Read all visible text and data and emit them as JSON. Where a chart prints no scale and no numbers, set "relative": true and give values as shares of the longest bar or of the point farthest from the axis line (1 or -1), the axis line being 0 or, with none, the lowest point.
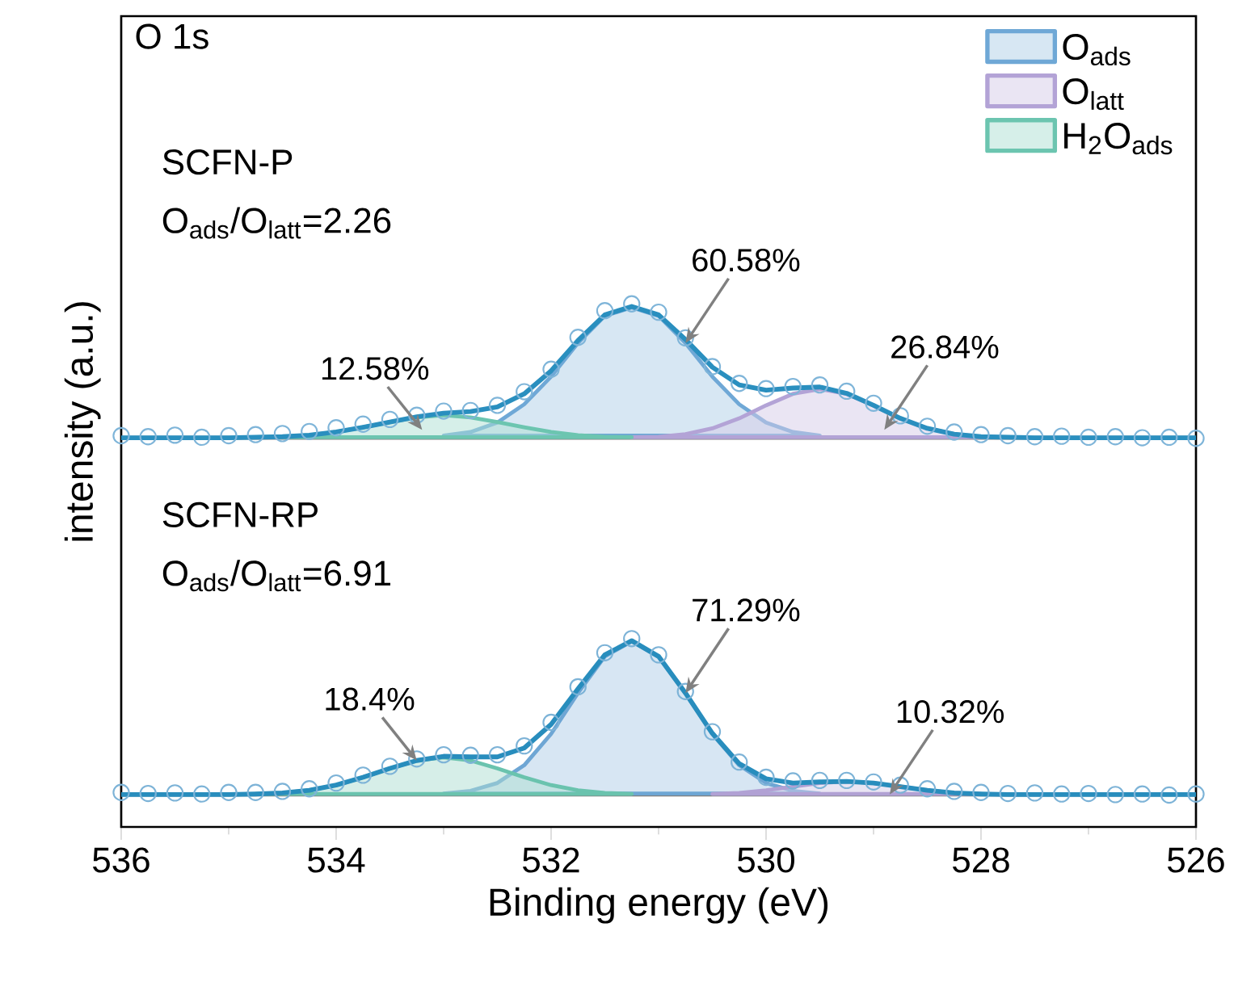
{
  "chart_data": {
    "type": "area",
    "relative": true,
    "xlabel": "Binding energy (eV)",
    "ylabel": "intensity (a.u.)",
    "xlim": [
      536,
      526
    ],
    "xticks": [
      536,
      534,
      532,
      530,
      528,
      526
    ],
    "legend": "top right",
    "marker": "none",
    "annotations": [
      "O 1s",
      "SCFN-P",
      "O$_{ads}$/O$_{latt}$=2.26",
      "SCFN-RP",
      "O$_{ads}$/O$_{latt}$=6.91",
      {
        "text": "60.58%",
        "x": 530.75,
        "y": 0.925
      },
      {
        "text": "26.84%",
        "x": 528.9,
        "y": 0.759
      },
      {
        "text": "12.58%",
        "x": 533.2,
        "y": 0.759
      },
      {
        "text": "71.29%",
        "x": 530.75,
        "y": 0.256
      },
      {
        "text": "18.4%",
        "x": 533.25,
        "y": 0.127
      },
      {
        "text": "10.32%",
        "x": 528.85,
        "y": 0.062
      }
    ],
    "series": [
      {
        "type": "line",
        "color": "#808080",
        "x": [
          536,
          526
        ],
        "values": [
          0.744,
          0.744
        ]
      },
      {
        "name": "O$_{ads}$",
        "color": "#6fa8d6",
        "x": [
          533,
          532.75,
          532.5,
          532.25,
          532,
          531.75,
          531.5,
          531.25,
          531,
          530.75,
          530.5,
          530.25,
          530,
          529.75,
          529.5
        ],
        "values": [
          0.748,
          0.755,
          0.773,
          0.808,
          0.861,
          0.925,
          0.977,
          0.993,
          0.977,
          0.925,
          0.861,
          0.808,
          0.773,
          0.755,
          0.748
        ]
      },
      {
        "name": "O$_{latt}$",
        "color": "#b3a3d6",
        "x": [
          531.25,
          531,
          530.75,
          530.5,
          530.25,
          530,
          529.75,
          529.5,
          529.25,
          529,
          528.75,
          528.5,
          528.25,
          528,
          527.75
        ],
        "values": [
          0.745,
          0.746,
          0.751,
          0.762,
          0.781,
          0.806,
          0.828,
          0.837,
          0.828,
          0.806,
          0.781,
          0.762,
          0.751,
          0.746,
          0.745
        ]
      },
      {
        "name": "H$_{2}$O$_{ads}$",
        "color": "#6cc5b0",
        "x": [
          534.75,
          534.5,
          534.25,
          534,
          533.75,
          533.5,
          533.25,
          533,
          532.75,
          532.5,
          532.25,
          532,
          531.75,
          531.5,
          531.25
        ],
        "values": [
          0.745,
          0.746,
          0.749,
          0.755,
          0.764,
          0.774,
          0.783,
          0.787,
          0.783,
          0.774,
          0.764,
          0.755,
          0.749,
          0.746,
          0.745
        ]
      },
      {
        "type": "scatter",
        "marker": "circle",
        "color": "#7fb5d9",
        "x": [
          536,
          535.75,
          535.5,
          535.25,
          535,
          534.75,
          534.5,
          534.25,
          534,
          533.75,
          533.5,
          533.25,
          533,
          532.75,
          532.5,
          532.25,
          532,
          531.75,
          531.5,
          531.25,
          531,
          530.75,
          530.5,
          530.25,
          530,
          529.75,
          529.5,
          529.25,
          529,
          528.75,
          528.5,
          528.25,
          528,
          527.75,
          527.5,
          527.25,
          527,
          526.75,
          526.5,
          526.25,
          526
        ],
        "values": [
          0.748,
          0.746,
          0.749,
          0.745,
          0.748,
          0.75,
          0.752,
          0.756,
          0.763,
          0.77,
          0.779,
          0.787,
          0.795,
          0.796,
          0.806,
          0.832,
          0.875,
          0.936,
          0.987,
          1.0,
          0.984,
          0.935,
          0.88,
          0.848,
          0.838,
          0.842,
          0.845,
          0.833,
          0.81,
          0.786,
          0.766,
          0.755,
          0.75,
          0.748,
          0.746,
          0.747,
          0.745,
          0.746,
          0.744,
          0.745,
          0.743
        ]
      },
      {
        "type": "line",
        "color": "#2a8fbf",
        "x": [
          536,
          535.75,
          535.5,
          535.25,
          535,
          534.75,
          534.5,
          534.25,
          534,
          533.75,
          533.5,
          533.25,
          533,
          532.75,
          532.5,
          532.25,
          532,
          531.75,
          531.5,
          531.25,
          531,
          530.75,
          530.5,
          530.25,
          530,
          529.75,
          529.5,
          529.25,
          529,
          528.75,
          528.5,
          528.25,
          528,
          527.75,
          527.5,
          527.25,
          527,
          526.75,
          526.5,
          526.25,
          526
        ],
        "values": [
          0.744,
          0.744,
          0.744,
          0.744,
          0.744,
          0.745,
          0.746,
          0.749,
          0.755,
          0.764,
          0.774,
          0.784,
          0.791,
          0.794,
          0.803,
          0.828,
          0.872,
          0.93,
          0.979,
          0.995,
          0.979,
          0.932,
          0.879,
          0.845,
          0.835,
          0.839,
          0.841,
          0.829,
          0.806,
          0.781,
          0.762,
          0.751,
          0.746,
          0.745,
          0.744,
          0.744,
          0.744,
          0.744,
          0.744,
          0.744,
          0.744
        ]
      },
      {
        "type": "line",
        "color": "#7f7f7f",
        "x": [
          536,
          526
        ],
        "values": [
          0.062,
          0.062
        ]
      },
      {
        "color": "#6ea6d4",
        "x": [
          533,
          532.75,
          532.5,
          532.25,
          532,
          531.75,
          531.5,
          531.25,
          531,
          530.75,
          530.5,
          530.25,
          530,
          529.75,
          529.5
        ],
        "values": [
          0.064,
          0.069,
          0.084,
          0.118,
          0.178,
          0.256,
          0.326,
          0.355,
          0.326,
          0.256,
          0.178,
          0.118,
          0.084,
          0.069,
          0.064
        ]
      },
      {
        "color": "#b1a1d4",
        "x": [
          530.5,
          530.25,
          530,
          529.75,
          529.5,
          529.25,
          529,
          528.75,
          528.5,
          528.25,
          528
        ],
        "values": [
          0.063,
          0.065,
          0.07,
          0.077,
          0.084,
          0.087,
          0.084,
          0.077,
          0.07,
          0.065,
          0.063
        ]
      },
      {
        "color": "#6ac3ae",
        "x": [
          534.75,
          534.5,
          534.25,
          534,
          533.75,
          533.5,
          533.25,
          533,
          532.75,
          532.5,
          532.25,
          532,
          531.75,
          531.5,
          531.25
        ],
        "values": [
          0.063,
          0.065,
          0.07,
          0.08,
          0.095,
          0.112,
          0.127,
          0.133,
          0.127,
          0.112,
          0.095,
          0.08,
          0.07,
          0.065,
          0.063
        ]
      },
      {
        "type": "scatter",
        "marker": "circle",
        "color": "#7db3d7",
        "x": [
          536,
          535.75,
          535.5,
          535.25,
          535,
          534.75,
          534.5,
          534.25,
          534,
          533.75,
          533.5,
          533.25,
          533,
          532.75,
          532.5,
          532.25,
          532,
          531.75,
          531.5,
          531.25,
          531,
          530.75,
          530.5,
          530.25,
          530,
          529.75,
          529.5,
          529.25,
          529,
          528.75,
          528.5,
          528.25,
          528,
          527.75,
          527.5,
          527.25,
          527,
          526.75,
          526.5,
          526.25,
          526
        ],
        "values": [
          0.066,
          0.064,
          0.065,
          0.063,
          0.066,
          0.066,
          0.068,
          0.073,
          0.084,
          0.099,
          0.116,
          0.13,
          0.138,
          0.137,
          0.138,
          0.155,
          0.2,
          0.268,
          0.333,
          0.36,
          0.329,
          0.259,
          0.182,
          0.124,
          0.095,
          0.088,
          0.089,
          0.089,
          0.086,
          0.08,
          0.073,
          0.068,
          0.066,
          0.064,
          0.065,
          0.063,
          0.064,
          0.062,
          0.063,
          0.061,
          0.063
        ]
      },
      {
        "type": "line",
        "color": "#288dbd",
        "x": [
          536,
          535.75,
          535.5,
          535.25,
          535,
          534.75,
          534.5,
          534.25,
          534,
          533.75,
          533.5,
          533.25,
          533,
          532.75,
          532.5,
          532.25,
          532,
          531.75,
          531.5,
          531.25,
          531,
          530.75,
          530.5,
          530.25,
          530,
          529.75,
          529.5,
          529.25,
          529,
          528.75,
          528.5,
          528.25,
          528,
          527.75,
          527.5,
          527.25,
          527,
          526.75,
          526.5,
          526.25,
          526
        ],
        "values": [
          0.062,
          0.062,
          0.062,
          0.062,
          0.062,
          0.063,
          0.065,
          0.07,
          0.08,
          0.095,
          0.112,
          0.127,
          0.135,
          0.134,
          0.134,
          0.151,
          0.196,
          0.264,
          0.329,
          0.356,
          0.326,
          0.256,
          0.179,
          0.121,
          0.092,
          0.084,
          0.086,
          0.087,
          0.084,
          0.077,
          0.07,
          0.065,
          0.063,
          0.062,
          0.062,
          0.062,
          0.062,
          0.062,
          0.062,
          0.062,
          0.062
        ]
      }
    ]
  }
}
